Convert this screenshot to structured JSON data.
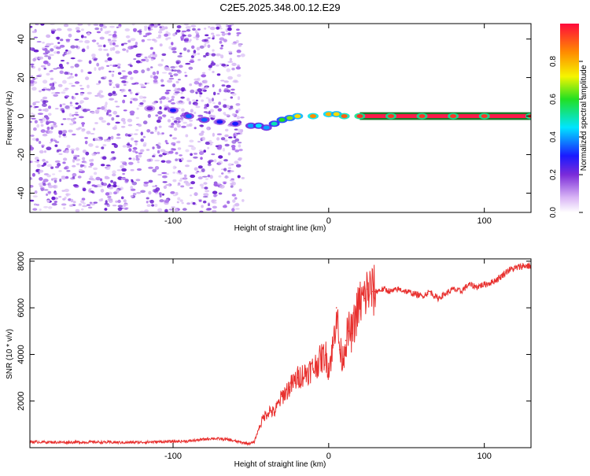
{
  "title": "C2E5.2025.348.00.12.E29",
  "chart_data": [
    {
      "type": "heatmap",
      "xlabel": "Height of straight line (km)",
      "ylabel": "Frequency (Hz)",
      "xlim": [
        -192,
        130
      ],
      "ylim": [
        -50,
        48
      ],
      "x_ticks": [
        -100,
        0,
        100
      ],
      "y_ticks": [
        -40,
        -20,
        0,
        20,
        40
      ],
      "colorbar": {
        "label": "Normalized spectral amplitude",
        "range": [
          0.0,
          1.0
        ],
        "ticks": [
          "0.0",
          "0.2",
          "0.4",
          "0.6",
          "0.8"
        ]
      },
      "noise_region_x": [
        -192,
        -55
      ],
      "signal_track": {
        "x": [
          -115,
          -100,
          -90,
          -80,
          -70,
          -60,
          -50,
          -45,
          -40,
          -35,
          -30,
          -25,
          -20,
          -10,
          0,
          5,
          10,
          20,
          40,
          60,
          80,
          100,
          130
        ],
        "frequency": [
          4,
          3,
          0,
          -2,
          -3,
          -4,
          -5,
          -5,
          -6,
          -4,
          -2,
          -1,
          0,
          0,
          1,
          1,
          0,
          0,
          0,
          0,
          0,
          0,
          0
        ],
        "amplitude": [
          0.2,
          0.3,
          0.35,
          0.35,
          0.3,
          0.3,
          0.4,
          0.45,
          0.4,
          0.5,
          0.6,
          0.65,
          0.75,
          0.85,
          0.8,
          0.75,
          0.9,
          0.95,
          0.95,
          0.95,
          0.95,
          0.95,
          0.95
        ]
      }
    },
    {
      "type": "line",
      "xlabel": "Height of straight line (km)",
      "ylabel": "SNR (10 * v/v)",
      "xlim": [
        -192,
        130
      ],
      "ylim": [
        0,
        8100
      ],
      "x_ticks": [
        -100,
        0,
        100
      ],
      "y_ticks": [
        2000,
        4000,
        6000,
        8000
      ],
      "series": [
        {
          "name": "SNR",
          "color": "#e8312f",
          "x": [
            -192,
            -170,
            -150,
            -130,
            -110,
            -90,
            -75,
            -65,
            -58,
            -52,
            -48,
            -45,
            -42,
            -38,
            -35,
            -30,
            -25,
            -20,
            -15,
            -10,
            -5,
            -2,
            0,
            3,
            5,
            7,
            9,
            11,
            13,
            15,
            18,
            20,
            23,
            25,
            28,
            30,
            35,
            40,
            45,
            50,
            55,
            60,
            65,
            70,
            75,
            80,
            85,
            90,
            95,
            100,
            105,
            110,
            115,
            120,
            125,
            130
          ],
          "values": [
            250,
            230,
            240,
            220,
            250,
            280,
            400,
            350,
            250,
            180,
            220,
            800,
            1300,
            1600,
            1500,
            2200,
            2600,
            3000,
            3200,
            3400,
            3800,
            4000,
            3400,
            4400,
            6000,
            4200,
            3800,
            4600,
            5000,
            4900,
            5800,
            6200,
            6400,
            6800,
            6700,
            6700,
            6800,
            6700,
            6800,
            6700,
            6600,
            6500,
            6700,
            6400,
            6600,
            6800,
            6700,
            7000,
            6900,
            7000,
            7100,
            7300,
            7600,
            7700,
            7800,
            7800
          ]
        }
      ]
    }
  ]
}
